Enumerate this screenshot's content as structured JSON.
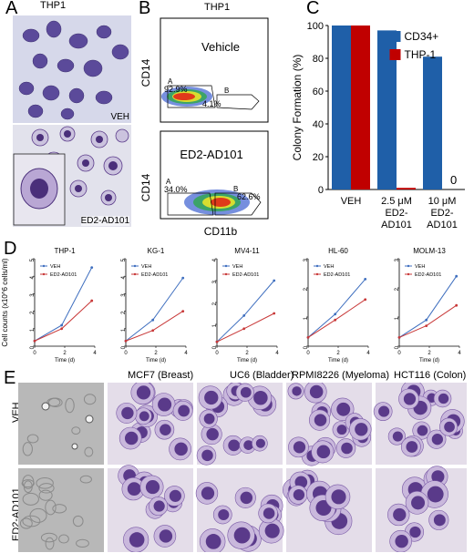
{
  "panel_letters": {
    "a": "A",
    "b": "B",
    "c": "C",
    "d": "D",
    "e": "E"
  },
  "panel_a": {
    "title": "THP1",
    "top_label": "VEH",
    "bottom_label": "ED2-AD101"
  },
  "panel_b": {
    "title": "THP1",
    "xlabel": "CD11b",
    "ylabel": "CD14",
    "plots": [
      {
        "name": "Vehicle",
        "gate_a_label": "A",
        "gate_a_pct": "92.9%",
        "gate_b_label": "B",
        "gate_b_pct": "4.1%"
      },
      {
        "name": "ED2-AD101",
        "gate_a_label": "A",
        "gate_a_pct": "34.0%",
        "gate_b_label": "B",
        "gate_b_pct": "62.6%"
      }
    ]
  },
  "panel_e": {
    "columns": [
      "MCF7 (Breast)",
      "UC6 (Bladder)",
      "RPMI8226 (Myeloma)",
      "HCT116 (Colon)"
    ],
    "rows": [
      "VEH",
      "ED2-AD101"
    ]
  },
  "colors": {
    "cd34": "#1f5fa8",
    "thp1": "#c00000",
    "veh_line": "#3f6fbf",
    "ed2_line": "#c83838",
    "stain_dark": "#5a3a8a",
    "stain_light": "#c9b8dc"
  },
  "chart_data": [
    {
      "type": "bar",
      "panel": "C",
      "ylabel": "Colony Formation (%)",
      "ylim": [
        0,
        100
      ],
      "yticks": [
        0,
        20,
        40,
        60,
        80,
        100
      ],
      "categories": [
        "VEH",
        "2.5 μM ED2-AD101",
        "10 μM ED2-AD101"
      ],
      "category_lines": [
        [
          "VEH"
        ],
        [
          "2.5 μM",
          "ED2-",
          "AD101"
        ],
        [
          "10 μM",
          "ED2-",
          "AD101"
        ]
      ],
      "series": [
        {
          "name": "CD34+",
          "values": [
            100,
            97,
            81
          ]
        },
        {
          "name": "THP-1",
          "values": [
            100,
            1,
            0
          ]
        }
      ],
      "annotations": [
        "0"
      ],
      "legend": "top-right"
    },
    {
      "type": "line",
      "panel": "D",
      "title": "THP-1",
      "ylabel": "Cell counts (x10^6 cells/ml)",
      "xlabel": "Time (d)",
      "ylim": [
        0,
        5
      ],
      "yticks": [
        0,
        1,
        2,
        3,
        4,
        5
      ],
      "xticks": [
        0,
        2,
        4
      ],
      "x": [
        0,
        1.8,
        3.8
      ],
      "series": [
        {
          "name": "VEH",
          "values": [
            0.3,
            1.2,
            4.5
          ]
        },
        {
          "name": "ED2-AD101",
          "values": [
            0.3,
            1.0,
            2.6
          ]
        }
      ]
    },
    {
      "type": "line",
      "panel": "D",
      "title": "KG-1",
      "xlabel": "Time (d)",
      "ylim": [
        0,
        5
      ],
      "yticks": [
        0,
        1,
        2,
        3,
        4,
        5
      ],
      "xticks": [
        0,
        2,
        4
      ],
      "x": [
        0,
        1.8,
        3.8
      ],
      "series": [
        {
          "name": "VEH",
          "values": [
            0.3,
            1.5,
            3.9
          ]
        },
        {
          "name": "ED2-AD101",
          "values": [
            0.3,
            0.9,
            2.0
          ]
        }
      ]
    },
    {
      "type": "line",
      "panel": "D",
      "title": "MV4-11",
      "xlabel": "Time (d)",
      "ylim": [
        0,
        4
      ],
      "yticks": [
        0,
        1,
        2,
        3,
        4
      ],
      "xticks": [
        0,
        2,
        4
      ],
      "x": [
        0,
        1.8,
        3.8
      ],
      "series": [
        {
          "name": "VEH",
          "values": [
            0.2,
            1.4,
            3.0
          ]
        },
        {
          "name": "ED2-AD101",
          "values": [
            0.2,
            0.8,
            1.5
          ]
        }
      ]
    },
    {
      "type": "line",
      "panel": "D",
      "title": "HL-60",
      "xlabel": "Time (d)",
      "ylim": [
        0,
        3
      ],
      "yticks": [
        0,
        1,
        2,
        3
      ],
      "xticks": [
        0,
        2,
        4
      ],
      "x": [
        0,
        1.8,
        3.8
      ],
      "series": [
        {
          "name": "VEH",
          "values": [
            0.3,
            1.1,
            2.3
          ]
        },
        {
          "name": "ED2-AD101",
          "values": [
            0.3,
            0.9,
            1.6
          ]
        }
      ]
    },
    {
      "type": "line",
      "panel": "D",
      "title": "MOLM-13",
      "xlabel": "Time (d)",
      "ylim": [
        0,
        3
      ],
      "yticks": [
        0,
        1,
        2,
        3
      ],
      "xticks": [
        0,
        2,
        4
      ],
      "x": [
        0,
        1.8,
        3.8
      ],
      "series": [
        {
          "name": "VEH",
          "values": [
            0.3,
            0.9,
            2.4
          ]
        },
        {
          "name": "ED2-AD101",
          "values": [
            0.3,
            0.7,
            1.4
          ]
        }
      ]
    }
  ]
}
